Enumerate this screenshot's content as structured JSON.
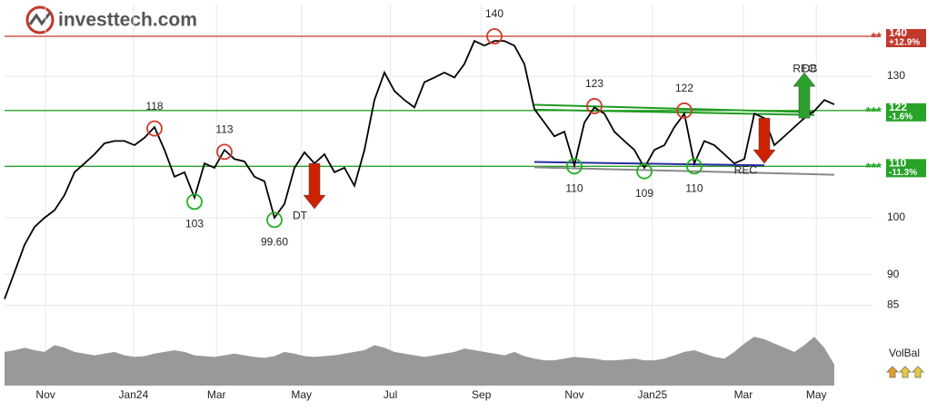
{
  "logo": "investtech.com",
  "chart_data": {
    "type": "line",
    "log_scale": true,
    "grid": true,
    "xlim": [
      0,
      83
    ],
    "xticks": [
      {
        "value": 4.1,
        "label": "Nov"
      },
      {
        "value": 12.9,
        "label": "Jan24"
      },
      {
        "value": 21.2,
        "label": "Mar"
      },
      {
        "value": 29.7,
        "label": "May"
      },
      {
        "value": 38.6,
        "label": "Jul"
      },
      {
        "value": 47.7,
        "label": "Sep"
      },
      {
        "value": 57,
        "label": "Nov"
      },
      {
        "value": 64.8,
        "label": "Jan25"
      },
      {
        "value": 73.9,
        "label": "Mar"
      },
      {
        "value": 81.2,
        "label": "May"
      }
    ],
    "ylim": [
      83.8,
      148.5
    ],
    "yticks": [
      85,
      90,
      100,
      130
    ],
    "series": [
      {
        "color": "#000000",
        "values": [
          86.0,
          90.4,
          95.1,
          98.3,
          100,
          101.4,
          104.3,
          108.8,
          110.6,
          112.5,
          114.8,
          115.3,
          115.3,
          114.4,
          116,
          118.3,
          113.4,
          107.9,
          108.8,
          103.8,
          110.6,
          109.7,
          113.4,
          111.5,
          111,
          107.9,
          107,
          100,
          102.6,
          109.7,
          112.9,
          110.6,
          112.5,
          108.8,
          109.7,
          106.1,
          113.4,
          124.4,
          130.9,
          126.5,
          124.4,
          122.7,
          128.6,
          129.7,
          130.9,
          129.7,
          133.0,
          138.8,
          137.6,
          138.8,
          138.8,
          137.6,
          133.0,
          122.3,
          119.3,
          116.3,
          117.3,
          110.2,
          119.3,
          122.7,
          121.3,
          117.3,
          115.3,
          113.4,
          109.7,
          113.4,
          114.4,
          118.3,
          121.3,
          110.6,
          115.3,
          114.4,
          112.5,
          110.6,
          111.5,
          121.3,
          120.3,
          114.4,
          116.3,
          118.3,
          120.3,
          121.9,
          124.4,
          123.4
        ]
      }
    ],
    "levels": [
      {
        "value": 140,
        "label": "140",
        "change": "+12.9%",
        "stars": "**",
        "color": "#c0392b"
      },
      {
        "value": 122,
        "label": "122",
        "change": "-1.6%",
        "stars": "***",
        "color": "#27a327"
      },
      {
        "value": 110,
        "label": "110",
        "change": "-11.3%",
        "stars": "***",
        "color": "#27a327"
      }
    ],
    "tops": [
      {
        "x": 15,
        "value": 118
      },
      {
        "x": 22,
        "value": 113
      },
      {
        "x": 49,
        "value": 140
      },
      {
        "x": 59,
        "value": 123
      },
      {
        "x": 68,
        "value": 122
      }
    ],
    "bottoms": [
      {
        "x": 19,
        "value": 103
      },
      {
        "x": 27,
        "value": {
          "value": 99.6,
          "label": "99.60"
        }
      },
      {
        "x": 57,
        "value": 110
      },
      {
        "x": 64,
        "value": 109
      },
      {
        "x": 69,
        "value": 110
      }
    ],
    "top_color": "#d03a2a",
    "bottom_color": "#22b022",
    "trend_lines": [
      {
        "x": [
          53,
          81
        ],
        "values": [
          123.3,
          121.6
        ],
        "color": "#1f9a1f"
      },
      {
        "x": [
          53,
          81
        ],
        "values": [
          122.2,
          121.0
        ],
        "color": "#1f9a1f"
      },
      {
        "x": [
          53,
          76
        ],
        "values": [
          110.9,
          110.2
        ],
        "color": "#2a2aa0"
      },
      {
        "x": [
          53,
          83
        ],
        "values": [
          109.8,
          108.3
        ],
        "color": "#888888"
      }
    ],
    "signals": [
      {
        "x": 31,
        "labels": [
          "DT"
        ],
        "direction": "down",
        "color": "#cc2200"
      },
      {
        "x": 76,
        "labels": [
          "REC"
        ],
        "direction": "down",
        "color": "#cc2200"
      },
      {
        "x": 80,
        "labels": [
          "REC",
          "DB"
        ],
        "direction": "up",
        "color": "#2ca02c"
      }
    ],
    "volume": {
      "color": "#999999",
      "vlim": [
        0,
        70
      ],
      "values": [
        40,
        42,
        45,
        42,
        40,
        48,
        45,
        40,
        38,
        36,
        38,
        40,
        36,
        34,
        35,
        38,
        40,
        42,
        40,
        36,
        35,
        34,
        36,
        38,
        36,
        34,
        33,
        35,
        40,
        38,
        35,
        34,
        35,
        36,
        38,
        40,
        42,
        48,
        45,
        40,
        38,
        36,
        34,
        36,
        38,
        40,
        44,
        42,
        40,
        38,
        36,
        40,
        35,
        32,
        30,
        30,
        32,
        34,
        33,
        32,
        30,
        30,
        31,
        32,
        30,
        30,
        32,
        36,
        40,
        42,
        38,
        34,
        32,
        40,
        50,
        58,
        55,
        50,
        45,
        40,
        48,
        58,
        45,
        25
      ]
    },
    "indicator_label": "VolBal"
  }
}
